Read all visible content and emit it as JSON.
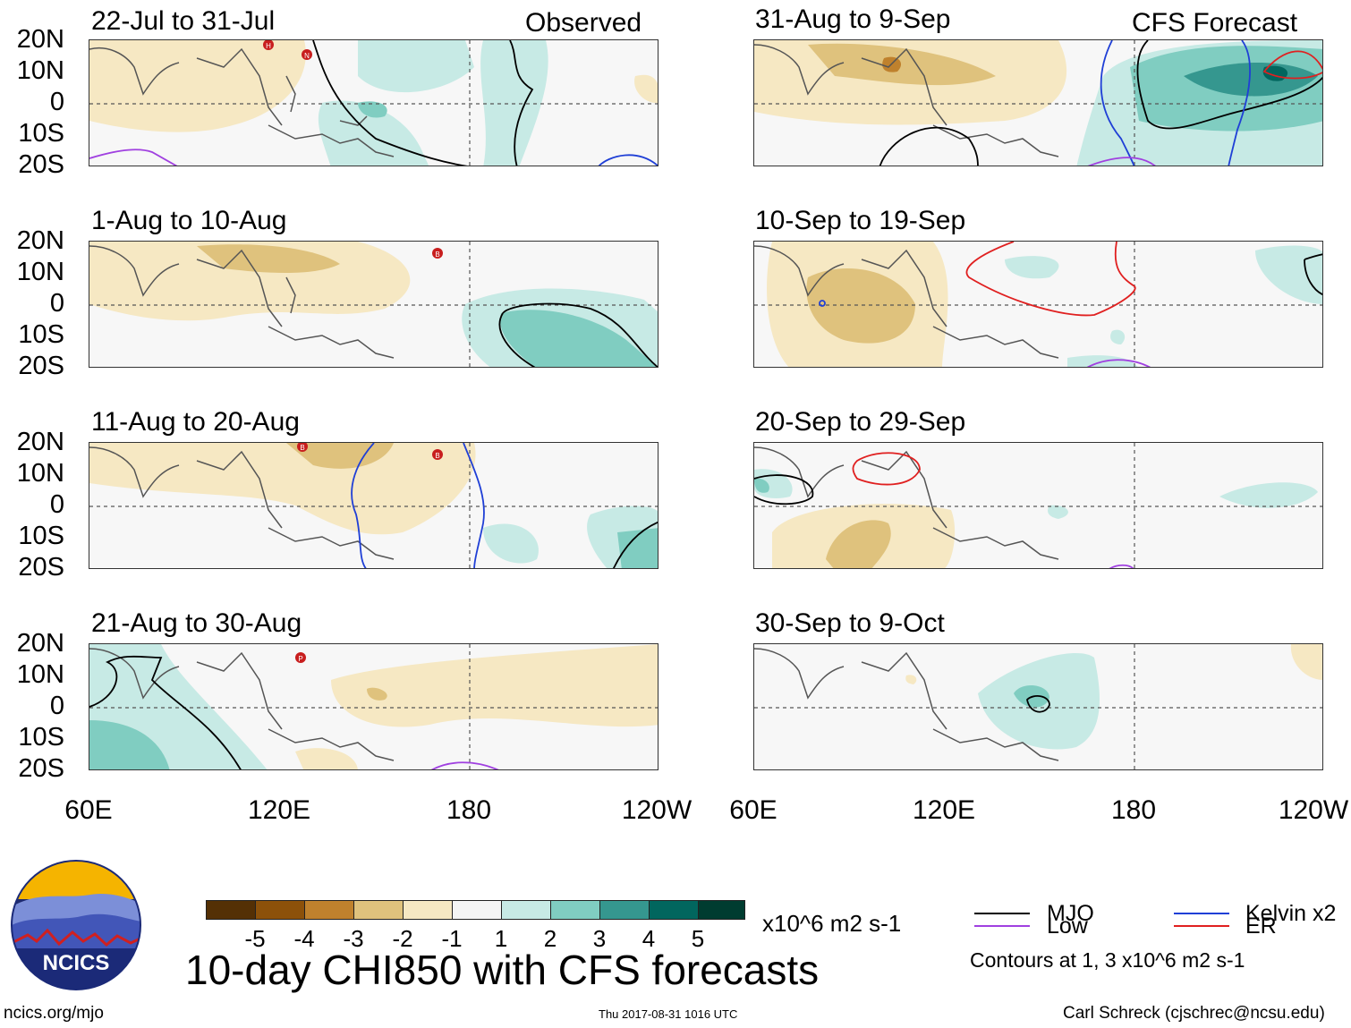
{
  "headers": {
    "observed": "Observed",
    "forecast": "CFS Forecast"
  },
  "panels": {
    "obs": [
      "22-Jul to 31-Jul",
      "1-Aug to 10-Aug",
      "11-Aug to 20-Aug",
      "21-Aug to 30-Aug"
    ],
    "fcst": [
      "31-Aug to 9-Sep",
      "10-Sep to 19-Sep",
      "20-Sep to 29-Sep",
      "30-Sep to 9-Oct"
    ]
  },
  "y_axis": [
    "20N",
    "10N",
    "0",
    "10S",
    "20S"
  ],
  "x_axis": [
    "60E",
    "120E",
    "180",
    "120W"
  ],
  "colorbar": {
    "ticks": [
      "-5",
      "-4",
      "-3",
      "-2",
      "-1",
      "1",
      "2",
      "3",
      "4",
      "5"
    ],
    "colors": [
      "#543005",
      "#8c510a",
      "#bf812d",
      "#dfc27d",
      "#f6e8c3",
      "#f5f5f5",
      "#c7eae5",
      "#80cdc1",
      "#35978f",
      "#01665e",
      "#003c30"
    ],
    "units": "x10^6 m2 s-1"
  },
  "legend": {
    "mjo": "MJO",
    "kelvin": "Kelvin x2",
    "low": "Low",
    "er": "ER",
    "contours_note": "Contours at 1, 3 x10^6 m2 s-1",
    "colors": {
      "mjo": "#000000",
      "kelvin": "#1f3fd6",
      "low": "#a040e0",
      "er": "#e02020"
    }
  },
  "title": "10-day CHI850 with CFS forecasts",
  "logo": {
    "text": "NCICS"
  },
  "footer": {
    "url": "ncics.org/mjo",
    "timestamp": "Thu 2017-08-31 1016 UTC",
    "credit": "Carl Schreck (cjschrec@ncsu.edu)"
  },
  "storm_markers": [
    "H",
    "N",
    "B",
    "B",
    "P"
  ]
}
